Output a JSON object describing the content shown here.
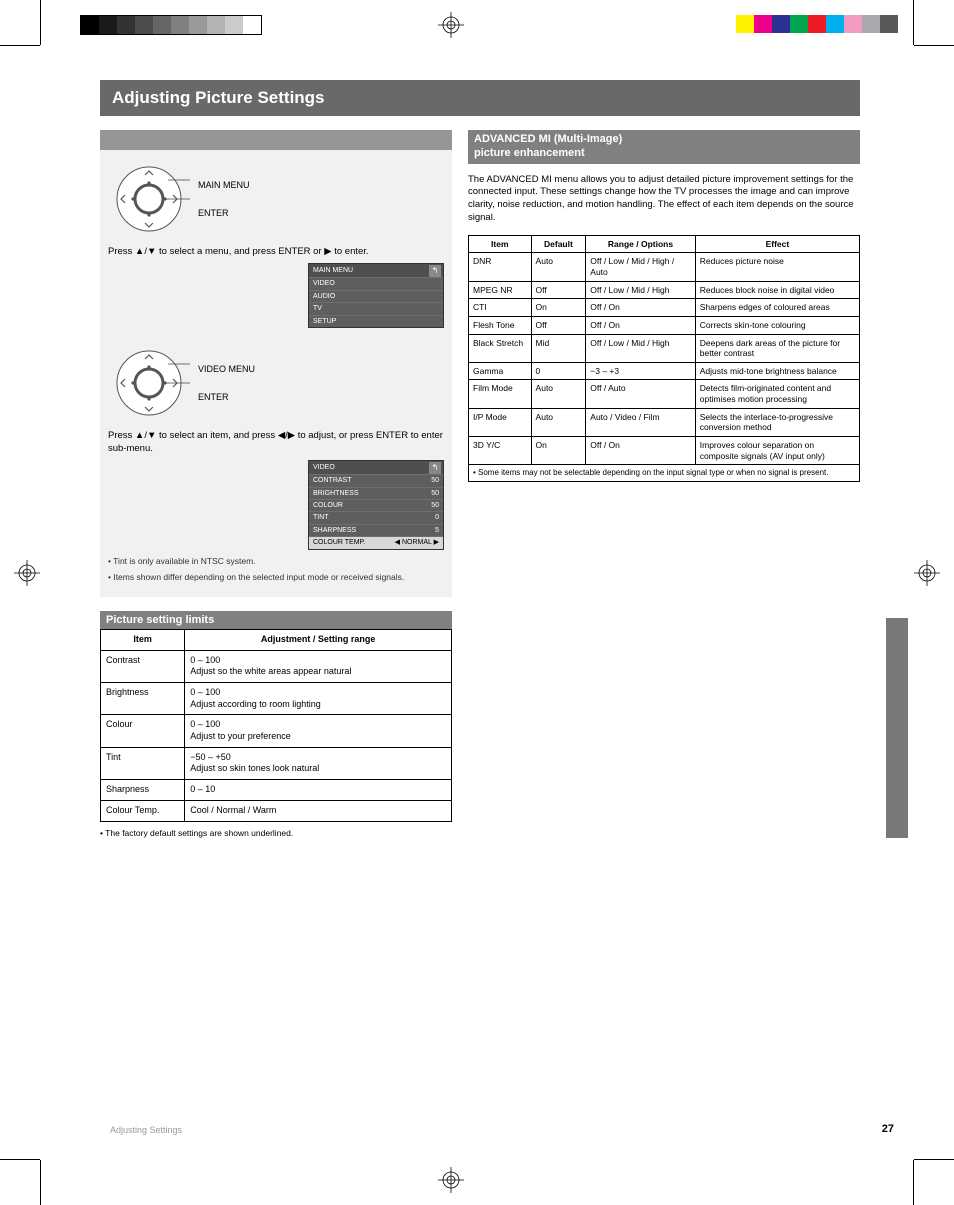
{
  "print": {
    "grayscale": [
      "#000000",
      "#1a1a1a",
      "#333333",
      "#4d4d4d",
      "#666666",
      "#808080",
      "#999999",
      "#b3b3b3",
      "#cccccc",
      "#ffffff"
    ],
    "colors": [
      "#fff200",
      "#ec008c",
      "#2e3192",
      "#00a651",
      "#ed1c24",
      "#00aeef",
      "#f49ac1",
      "#a7a9ac",
      "#58595b"
    ]
  },
  "header": "Adjusting Picture Settings",
  "left": {
    "bar1": "",
    "step1_label": "MAIN MENU",
    "step1_btn": "ENTER",
    "step1_text": "Press ▲/▼ to select a menu, and press ENTER or ▶ to enter.",
    "osd1": {
      "title": "MAIN MENU",
      "rows": [
        [
          "VIDEO",
          ""
        ],
        [
          "AUDIO",
          ""
        ],
        [
          "TV",
          ""
        ],
        [
          "SETUP",
          ""
        ]
      ]
    },
    "step2_label": "VIDEO MENU",
    "step2_btn": "ENTER",
    "step2_text": "Press ▲/▼ to select an item, and press ◀/▶ to adjust, or press ENTER to enter sub-menu.",
    "osd2": {
      "title": "VIDEO",
      "rows": [
        [
          "CONTRAST",
          "50"
        ],
        [
          "BRIGHTNESS",
          "50"
        ],
        [
          "COLOUR",
          "50"
        ],
        [
          "TINT",
          "0"
        ],
        [
          "SHARPNESS",
          "5"
        ],
        [
          "COLOUR TEMP.",
          "◀ NORMAL ▶"
        ]
      ],
      "sel": 5
    },
    "note1": "• Tint is only available in NTSC system.",
    "note2": "• Items shown differ depending on the selected input mode or received signals.",
    "bar2": "Picture setting limits",
    "limits": {
      "headers": [
        "Item",
        "Adjustment / Setting range"
      ],
      "rows": [
        [
          "Contrast",
          "0 – 100\nAdjust so the white areas appear natural"
        ],
        [
          "Brightness",
          "0 – 100\nAdjust according to room lighting"
        ],
        [
          "Colour",
          "0 – 100\nAdjust to your preference"
        ],
        [
          "Tint",
          "−50 – +50\nAdjust so skin tones look natural"
        ],
        [
          "Sharpness",
          "0 – 10"
        ],
        [
          "Colour Temp.",
          "Cool / Normal / Warm"
        ]
      ]
    },
    "limits_note": "• The factory default settings are shown underlined."
  },
  "right": {
    "bar": "ADVANCED MI (Multi-Image)\npicture enhancement",
    "para": "The ADVANCED MI menu allows you to adjust detailed picture improvement settings for the connected input. These settings change how the TV processes the image and can improve clarity, noise reduction, and motion handling. The effect of each item depends on the source signal.",
    "effects": {
      "cols": [
        "Item",
        "Default",
        "Range / Options",
        "Effect"
      ],
      "rows": [
        [
          "DNR",
          "Auto",
          "Off / Low / Mid / High / Auto",
          "Reduces picture noise"
        ],
        [
          "MPEG NR",
          "Off",
          "Off / Low / Mid / High",
          "Reduces block noise in digital video"
        ],
        [
          "CTI",
          "On",
          "Off / On",
          "Sharpens edges of coloured areas"
        ],
        [
          "Flesh Tone",
          "Off",
          "Off / On",
          "Corrects skin-tone colouring"
        ],
        [
          "Black Stretch",
          "Mid",
          "Off / Low / Mid / High",
          "Deepens dark areas of the picture for better contrast"
        ],
        [
          "Gamma",
          "0",
          "−3 – +3",
          "Adjusts mid-tone brightness balance"
        ],
        [
          "Film Mode",
          "Auto",
          "Off / Auto",
          "Detects film-originated content and optimises motion processing"
        ],
        [
          "I/P Mode",
          "Auto",
          "Auto / Video / Film",
          "Selects the interlace-to-progressive conversion method"
        ],
        [
          "3D Y/C",
          "On",
          "Off / On",
          "Improves colour separation on composite signals (AV input only)"
        ]
      ],
      "note": "• Some items may not be selectable depending on the input signal type or when no signal is present."
    }
  },
  "page_num": "27",
  "page_label": "Adjusting Settings"
}
